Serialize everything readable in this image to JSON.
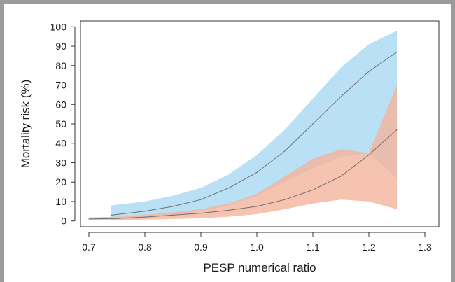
{
  "chart_data": {
    "type": "line",
    "xlabel": "PESP numerical ratio",
    "ylabel": "Mortality risk (%)",
    "xlim": [
      0.685,
      1.325
    ],
    "ylim": [
      -3,
      103
    ],
    "xticks": [
      0.7,
      0.8,
      0.9,
      1.0,
      1.1,
      1.2,
      1.3
    ],
    "xtick_labels": [
      "0.7",
      "0.8",
      "0.9",
      "1.0",
      "1.1",
      "1.2",
      "1.3"
    ],
    "yticks": [
      0,
      10,
      20,
      30,
      40,
      50,
      60,
      70,
      80,
      90,
      100
    ],
    "ytick_labels": [
      "0",
      "10",
      "20",
      "30",
      "40",
      "50",
      "60",
      "70",
      "80",
      "90",
      "100"
    ],
    "grid": false,
    "series": [
      {
        "color": "#a9d8f2",
        "line_color": "#6e6e6e",
        "x": [
          0.74,
          0.8,
          0.85,
          0.9,
          0.95,
          1.0,
          1.05,
          1.1,
          1.15,
          1.2,
          1.25
        ],
        "y": [
          3,
          5,
          7.5,
          11,
          17,
          25,
          36,
          50,
          64,
          77,
          87
        ],
        "lower": [
          0.5,
          1.5,
          3,
          5,
          8,
          13,
          20,
          27,
          33,
          35,
          22
        ],
        "upper": [
          8,
          10,
          13,
          17,
          24,
          34,
          47,
          63,
          79,
          91,
          98
        ]
      },
      {
        "color": "#f4b49c",
        "line_color": "#6e6e6e",
        "x": [
          0.7,
          0.75,
          0.8,
          0.85,
          0.9,
          0.95,
          1.0,
          1.05,
          1.1,
          1.15,
          1.2,
          1.25
        ],
        "y": [
          1,
          1.3,
          2,
          3,
          4,
          5.5,
          7.5,
          11,
          16,
          23,
          34,
          47
        ],
        "lower": [
          0.3,
          0.4,
          0.7,
          1,
          1.4,
          2.2,
          3.5,
          6,
          9,
          11,
          10,
          6
        ],
        "upper": [
          1.8,
          2.2,
          3.2,
          4.5,
          6,
          9,
          14,
          23,
          32,
          37,
          35,
          70
        ]
      }
    ]
  }
}
